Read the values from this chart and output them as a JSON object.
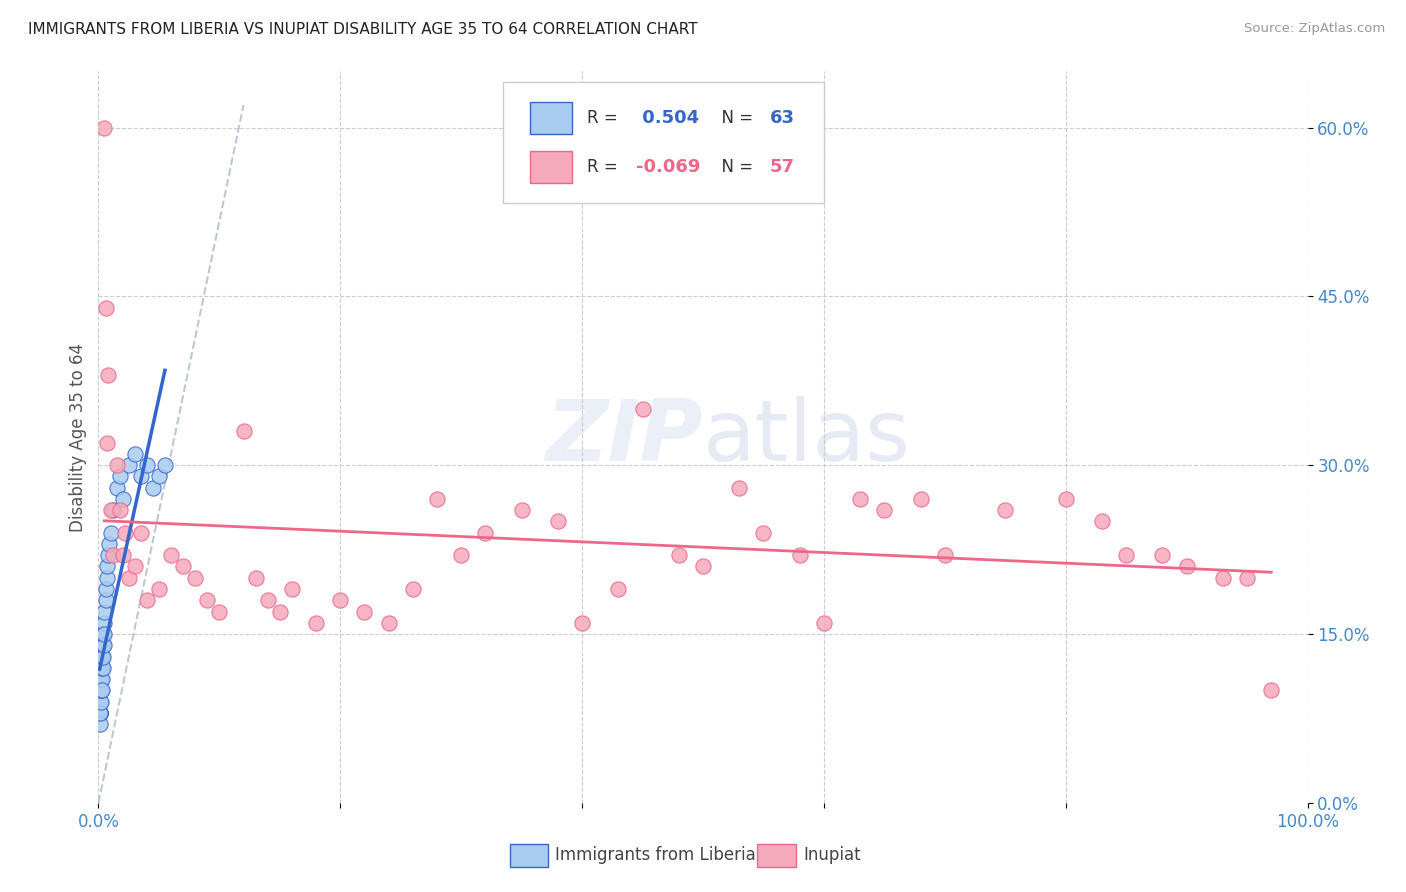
{
  "title": "IMMIGRANTS FROM LIBERIA VS INUPIAT DISABILITY AGE 35 TO 64 CORRELATION CHART",
  "source": "Source: ZipAtlas.com",
  "ylabel": "Disability Age 35 to 64",
  "r_liberia": 0.504,
  "n_liberia": 63,
  "r_inupiat": -0.069,
  "n_inupiat": 57,
  "liberia_color": "#aaccf0",
  "inupiat_color": "#f5aabb",
  "liberia_line_color": "#3366cc",
  "inupiat_line_color": "#ee6688",
  "background_color": "#ffffff",
  "grid_color": "#cccccc",
  "title_color": "#222222",
  "axis_label_color": "#4488cc",
  "xlim": [
    0.0,
    1.0
  ],
  "ylim": [
    0.0,
    0.65
  ],
  "ytick_vals": [
    0.0,
    0.15,
    0.3,
    0.45,
    0.6
  ],
  "ytick_labels": [
    "0.0%",
    "15.0%",
    "30.0%",
    "45.0%",
    "60.0%"
  ],
  "liberia_x": [
    0.001,
    0.001,
    0.001,
    0.001,
    0.001,
    0.001,
    0.001,
    0.001,
    0.001,
    0.001,
    0.001,
    0.001,
    0.001,
    0.001,
    0.001,
    0.001,
    0.001,
    0.001,
    0.001,
    0.001,
    0.002,
    0.002,
    0.002,
    0.002,
    0.002,
    0.002,
    0.002,
    0.002,
    0.002,
    0.002,
    0.003,
    0.003,
    0.003,
    0.003,
    0.003,
    0.003,
    0.003,
    0.004,
    0.004,
    0.004,
    0.004,
    0.005,
    0.005,
    0.005,
    0.005,
    0.006,
    0.006,
    0.007,
    0.007,
    0.008,
    0.009,
    0.01,
    0.012,
    0.015,
    0.018,
    0.02,
    0.025,
    0.03,
    0.035,
    0.04,
    0.045,
    0.05,
    0.055
  ],
  "liberia_y": [
    0.08,
    0.09,
    0.1,
    0.11,
    0.08,
    0.09,
    0.1,
    0.08,
    0.09,
    0.1,
    0.11,
    0.12,
    0.08,
    0.09,
    0.1,
    0.08,
    0.07,
    0.09,
    0.08,
    0.1,
    0.1,
    0.11,
    0.12,
    0.13,
    0.09,
    0.1,
    0.11,
    0.12,
    0.13,
    0.1,
    0.12,
    0.13,
    0.14,
    0.11,
    0.12,
    0.13,
    0.1,
    0.14,
    0.15,
    0.12,
    0.13,
    0.16,
    0.17,
    0.14,
    0.15,
    0.18,
    0.19,
    0.2,
    0.21,
    0.22,
    0.23,
    0.24,
    0.26,
    0.28,
    0.29,
    0.27,
    0.3,
    0.31,
    0.29,
    0.3,
    0.28,
    0.29,
    0.3
  ],
  "inupiat_x": [
    0.005,
    0.006,
    0.007,
    0.008,
    0.01,
    0.012,
    0.015,
    0.018,
    0.02,
    0.022,
    0.025,
    0.03,
    0.035,
    0.04,
    0.05,
    0.06,
    0.07,
    0.08,
    0.09,
    0.1,
    0.12,
    0.13,
    0.14,
    0.15,
    0.16,
    0.18,
    0.2,
    0.22,
    0.24,
    0.26,
    0.28,
    0.3,
    0.32,
    0.35,
    0.38,
    0.4,
    0.43,
    0.45,
    0.48,
    0.5,
    0.53,
    0.55,
    0.58,
    0.6,
    0.63,
    0.65,
    0.68,
    0.7,
    0.75,
    0.8,
    0.83,
    0.85,
    0.88,
    0.9,
    0.93,
    0.95,
    0.97
  ],
  "inupiat_y": [
    0.6,
    0.44,
    0.32,
    0.38,
    0.26,
    0.22,
    0.3,
    0.26,
    0.22,
    0.24,
    0.2,
    0.21,
    0.24,
    0.18,
    0.19,
    0.22,
    0.21,
    0.2,
    0.18,
    0.17,
    0.33,
    0.2,
    0.18,
    0.17,
    0.19,
    0.16,
    0.18,
    0.17,
    0.16,
    0.19,
    0.27,
    0.22,
    0.24,
    0.26,
    0.25,
    0.16,
    0.19,
    0.35,
    0.22,
    0.21,
    0.28,
    0.24,
    0.22,
    0.16,
    0.27,
    0.26,
    0.27,
    0.22,
    0.26,
    0.27,
    0.25,
    0.22,
    0.22,
    0.21,
    0.2,
    0.2,
    0.1
  ]
}
